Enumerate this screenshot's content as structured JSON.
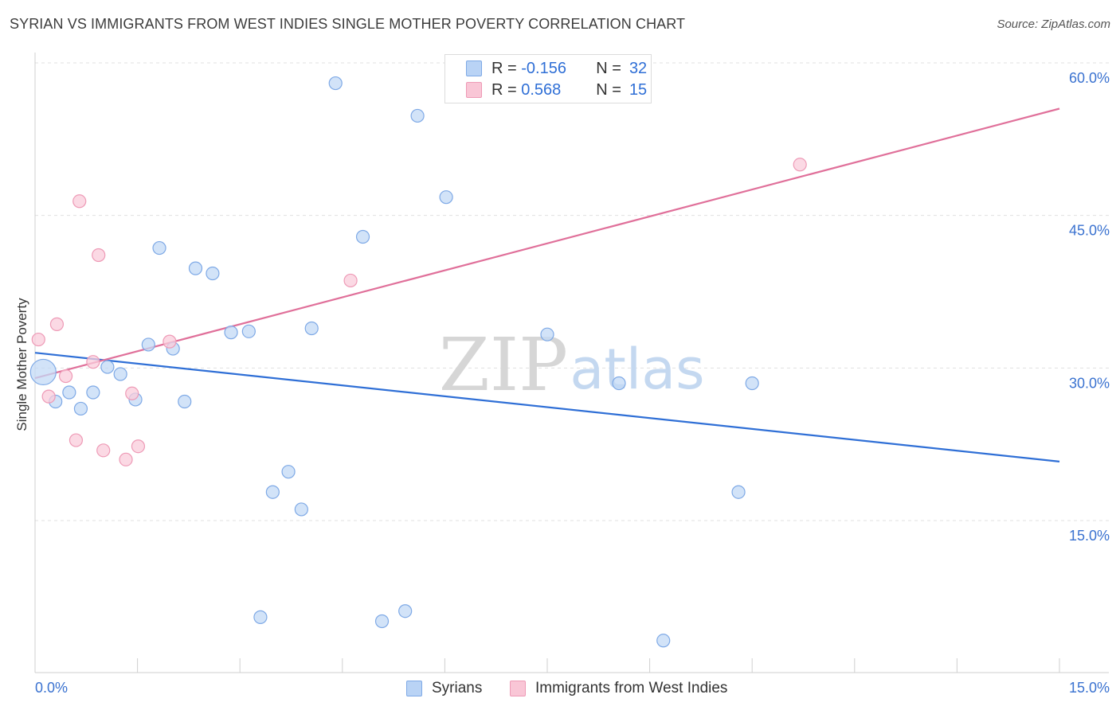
{
  "header": {
    "title": "SYRIAN VS IMMIGRANTS FROM WEST INDIES SINGLE MOTHER POVERTY CORRELATION CHART",
    "source": "Source: ZipAtlas.com"
  },
  "watermark": {
    "zip": "ZIP",
    "atlas": "atlas"
  },
  "legend": {
    "r_label": "R =",
    "n_label": "N =",
    "series": [
      {
        "name": "Syrians",
        "r": "-0.156",
        "n": "32"
      },
      {
        "name": "Immigrants from West Indies",
        "r": "0.568",
        "n": "15"
      }
    ]
  },
  "colors": {
    "syrians_fill": "#c3d9f5",
    "syrians_stroke": "#7ea9e6",
    "syrians_line": "#2f6fd6",
    "westindies_fill": "#f9ccdb",
    "westindies_stroke": "#ee9ab6",
    "westindies_line": "#e0709a",
    "axis_label": "#3a72d0",
    "grid": "#e0e0e0"
  },
  "chart_data": {
    "type": "scatter",
    "title": "SYRIAN VS IMMIGRANTS FROM WEST INDIES SINGLE MOTHER POVERTY CORRELATION CHART",
    "xlabel": "",
    "ylabel": "Single Mother Poverty",
    "xlim": [
      0,
      15
    ],
    "ylim": [
      0,
      63
    ],
    "x_tick_labels": [
      "0.0%",
      "15.0%"
    ],
    "y_ticks": [
      15,
      30,
      45,
      60
    ],
    "y_tick_labels": [
      "15.0%",
      "30.0%",
      "45.0%",
      "60.0%"
    ],
    "grid": true,
    "legend_position": "top-center",
    "series": [
      {
        "name": "Syrians",
        "r": -0.156,
        "n": 32,
        "trend": {
          "x": [
            0,
            15
          ],
          "y": [
            31.5,
            20.8
          ]
        },
        "points": [
          {
            "x": 0.12,
            "y": 29.6,
            "big": true
          },
          {
            "x": 0.3,
            "y": 26.7
          },
          {
            "x": 0.5,
            "y": 27.6
          },
          {
            "x": 0.67,
            "y": 26.0
          },
          {
            "x": 0.85,
            "y": 27.6
          },
          {
            "x": 1.06,
            "y": 30.1
          },
          {
            "x": 1.25,
            "y": 29.4
          },
          {
            "x": 1.47,
            "y": 26.9
          },
          {
            "x": 1.66,
            "y": 32.3
          },
          {
            "x": 1.82,
            "y": 41.8
          },
          {
            "x": 2.02,
            "y": 31.9
          },
          {
            "x": 2.19,
            "y": 26.7
          },
          {
            "x": 2.35,
            "y": 39.8
          },
          {
            "x": 2.6,
            "y": 39.3
          },
          {
            "x": 2.87,
            "y": 33.5
          },
          {
            "x": 3.13,
            "y": 33.6
          },
          {
            "x": 3.3,
            "y": 5.5
          },
          {
            "x": 3.48,
            "y": 17.8
          },
          {
            "x": 3.71,
            "y": 19.8
          },
          {
            "x": 3.9,
            "y": 16.1
          },
          {
            "x": 4.05,
            "y": 33.9
          },
          {
            "x": 4.4,
            "y": 58.0
          },
          {
            "x": 4.8,
            "y": 42.9
          },
          {
            "x": 5.08,
            "y": 5.1
          },
          {
            "x": 5.42,
            "y": 6.1
          },
          {
            "x": 5.6,
            "y": 54.8
          },
          {
            "x": 6.02,
            "y": 46.8
          },
          {
            "x": 7.5,
            "y": 33.3
          },
          {
            "x": 8.55,
            "y": 28.5
          },
          {
            "x": 9.2,
            "y": 3.2
          },
          {
            "x": 10.3,
            "y": 17.8
          },
          {
            "x": 10.5,
            "y": 28.5
          }
        ]
      },
      {
        "name": "Immigrants from West Indies",
        "r": 0.568,
        "n": 15,
        "trend": {
          "x": [
            0,
            15
          ],
          "y": [
            29.0,
            55.5
          ]
        },
        "points": [
          {
            "x": 0.05,
            "y": 32.8
          },
          {
            "x": 0.2,
            "y": 27.2
          },
          {
            "x": 0.32,
            "y": 34.3
          },
          {
            "x": 0.45,
            "y": 29.2
          },
          {
            "x": 0.6,
            "y": 22.9
          },
          {
            "x": 0.65,
            "y": 46.4
          },
          {
            "x": 0.85,
            "y": 30.6
          },
          {
            "x": 0.93,
            "y": 41.1
          },
          {
            "x": 1.0,
            "y": 21.9
          },
          {
            "x": 1.33,
            "y": 21.0
          },
          {
            "x": 1.42,
            "y": 27.5
          },
          {
            "x": 1.51,
            "y": 22.3
          },
          {
            "x": 1.97,
            "y": 32.6
          },
          {
            "x": 4.62,
            "y": 38.6
          },
          {
            "x": 11.2,
            "y": 50.0
          }
        ]
      }
    ]
  }
}
